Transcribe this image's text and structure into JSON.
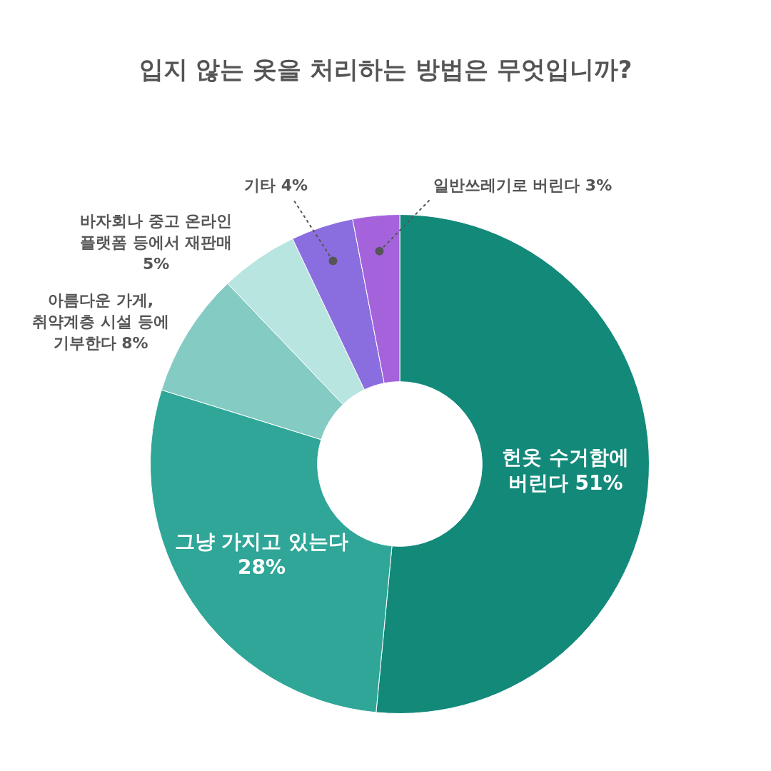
{
  "chart_data": {
    "type": "donut",
    "title": "입지 않는 옷을 처리하는 방법은 무엇입니까?",
    "categories": [
      "헌옷 수거함에 버린다",
      "그냥 가지고 있는다",
      "아름다운 가게, 취약계층 시설 등에 기부한다",
      "바자회나 중고 온라인 플랫폼 등에서 재판매",
      "기타",
      "일반쓰레기로 버린다"
    ],
    "values": [
      51,
      28,
      8,
      5,
      4,
      3
    ],
    "value_labels": [
      "51%",
      "28%",
      "8%",
      "5%",
      "4%",
      "3%"
    ],
    "colors": [
      "#13897a",
      "#2fa698",
      "#84cbc3",
      "#b8e5e0",
      "#8a6ee0",
      "#a463db"
    ]
  }
}
